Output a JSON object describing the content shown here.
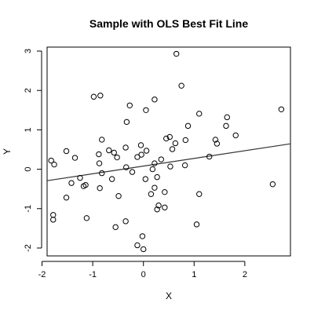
{
  "chart_data": {
    "type": "scatter",
    "title": "Sample with OLS Best Fit Line",
    "xlabel": "X",
    "ylabel": "Y",
    "xlim": [
      -1.9,
      2.9
    ],
    "ylim": [
      -2.2,
      3.1
    ],
    "x_ticks": [
      -2,
      -1,
      0,
      1,
      2
    ],
    "y_ticks": [
      -2,
      -1,
      0,
      1,
      2,
      3
    ],
    "x_tick_labels": [
      "-2",
      "-1",
      "0",
      "1",
      "2"
    ],
    "y_tick_labels": [
      "-2",
      "-1",
      "0",
      "1",
      "2",
      "3"
    ],
    "grid": false,
    "legend": "none",
    "fit_line": {
      "intercept": 0.08,
      "slope": 0.195
    },
    "colors": {
      "points": "#000000",
      "line": "#333333",
      "frame": "#000000"
    },
    "points": [
      {
        "x": 0.65,
        "y": 2.93
      },
      {
        "x": 0.75,
        "y": 2.12
      },
      {
        "x": -0.98,
        "y": 1.84
      },
      {
        "x": -0.85,
        "y": 1.87
      },
      {
        "x": -0.27,
        "y": 1.62
      },
      {
        "x": 0.22,
        "y": 1.77
      },
      {
        "x": 0.05,
        "y": 1.5
      },
      {
        "x": 1.1,
        "y": 1.41
      },
      {
        "x": 1.65,
        "y": 1.32
      },
      {
        "x": 2.72,
        "y": 1.52
      },
      {
        "x": -0.33,
        "y": 1.2
      },
      {
        "x": 0.88,
        "y": 1.1
      },
      {
        "x": 1.63,
        "y": 1.1
      },
      {
        "x": -0.82,
        "y": 0.75
      },
      {
        "x": 0.45,
        "y": 0.78
      },
      {
        "x": 0.52,
        "y": 0.82
      },
      {
        "x": 0.83,
        "y": 0.74
      },
      {
        "x": 1.42,
        "y": 0.75
      },
      {
        "x": 1.45,
        "y": 0.65
      },
      {
        "x": 1.82,
        "y": 0.86
      },
      {
        "x": -0.05,
        "y": 0.61
      },
      {
        "x": 0.63,
        "y": 0.66
      },
      {
        "x": -1.52,
        "y": 0.46
      },
      {
        "x": -0.68,
        "y": 0.48
      },
      {
        "x": -0.58,
        "y": 0.42
      },
      {
        "x": -0.35,
        "y": 0.55
      },
      {
        "x": 0.06,
        "y": 0.47
      },
      {
        "x": 0.57,
        "y": 0.51
      },
      {
        "x": -1.35,
        "y": 0.29
      },
      {
        "x": -0.88,
        "y": 0.38
      },
      {
        "x": -0.12,
        "y": 0.31
      },
      {
        "x": -0.04,
        "y": 0.37
      },
      {
        "x": -1.82,
        "y": 0.22
      },
      {
        "x": -1.76,
        "y": 0.12
      },
      {
        "x": -0.87,
        "y": 0.15
      },
      {
        "x": -0.52,
        "y": 0.3
      },
      {
        "x": 0.22,
        "y": 0.15
      },
      {
        "x": 0.35,
        "y": 0.25
      },
      {
        "x": 0.82,
        "y": 0.1
      },
      {
        "x": 1.3,
        "y": 0.32
      },
      {
        "x": -0.34,
        "y": 0.05
      },
      {
        "x": -0.22,
        "y": -0.07
      },
      {
        "x": 0.18,
        "y": 0.0
      },
      {
        "x": 0.53,
        "y": 0.07
      },
      {
        "x": -0.62,
        "y": -0.25
      },
      {
        "x": -0.82,
        "y": -0.1
      },
      {
        "x": -1.25,
        "y": -0.22
      },
      {
        "x": 0.04,
        "y": -0.25
      },
      {
        "x": -1.42,
        "y": -0.35
      },
      {
        "x": -1.18,
        "y": -0.43
      },
      {
        "x": -1.14,
        "y": -0.4
      },
      {
        "x": 0.27,
        "y": -0.2
      },
      {
        "x": -0.86,
        "y": -0.48
      },
      {
        "x": 0.22,
        "y": -0.47
      },
      {
        "x": -1.52,
        "y": -0.72
      },
      {
        "x": -0.49,
        "y": -0.68
      },
      {
        "x": 0.15,
        "y": -0.63
      },
      {
        "x": 0.42,
        "y": -0.58
      },
      {
        "x": 0.3,
        "y": -0.92
      },
      {
        "x": 1.1,
        "y": -0.63
      },
      {
        "x": -1.78,
        "y": -1.16
      },
      {
        "x": -1.78,
        "y": -1.28
      },
      {
        "x": -1.12,
        "y": -1.24
      },
      {
        "x": -0.35,
        "y": -1.32
      },
      {
        "x": 0.42,
        "y": -0.97
      },
      {
        "x": 0.27,
        "y": -1.02
      },
      {
        "x": 2.55,
        "y": -0.38
      },
      {
        "x": -0.55,
        "y": -1.47
      },
      {
        "x": 1.05,
        "y": -1.4
      },
      {
        "x": -0.02,
        "y": -1.7
      },
      {
        "x": -0.12,
        "y": -1.93
      },
      {
        "x": 0.0,
        "y": -2.03
      }
    ]
  }
}
